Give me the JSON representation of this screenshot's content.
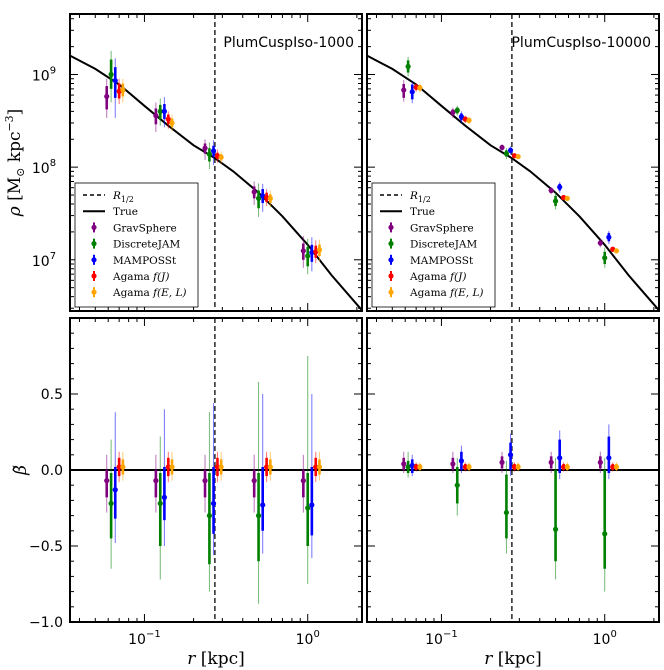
{
  "chart_data": {
    "type": "scatter",
    "radius_groups_kpc": [
      0.0625,
      0.125,
      0.25,
      0.5,
      1.0
    ],
    "r_half_kpc": 0.27,
    "xlim_kpc": [
      0.035,
      2.15
    ],
    "x_ticks": [
      {
        "value": 0.1,
        "base": "10",
        "exp": "−1"
      },
      {
        "value": 1.0,
        "base": "10",
        "exp": "0"
      }
    ],
    "xlabel": {
      "var": "r",
      "unit": "[kpc]"
    },
    "density_ylabel": {
      "var": "ρ",
      "unit_open": "[M",
      "unit_sub": "⊙",
      "unit_mid": " kpc",
      "unit_exp": "−3",
      "unit_close": "]"
    },
    "density_ylim": [
      2800000.0,
      4500000000.0
    ],
    "density_ticks": [
      {
        "value": 10000000.0,
        "base": "10",
        "exp": "7"
      },
      {
        "value": 100000000.0,
        "base": "10",
        "exp": "8"
      },
      {
        "value": 1000000000.0,
        "base": "10",
        "exp": "9"
      }
    ],
    "beta_ylabel": {
      "var": "β̃"
    },
    "beta_ylim": [
      -1.0,
      1.0
    ],
    "beta_ticks": [
      {
        "value": -1.0,
        "label": "−1.0"
      },
      {
        "value": -0.5,
        "label": "−0.5"
      },
      {
        "value": 0.0,
        "label": "0.0"
      },
      {
        "value": 0.5,
        "label": "0.5"
      }
    ],
    "true_density_profile": {
      "name": "True",
      "x": [
        0.035,
        0.05,
        0.07,
        0.1,
        0.14,
        0.2,
        0.27,
        0.35,
        0.5,
        0.7,
        1.0,
        1.4,
        2.15
      ],
      "y": [
        1600000000.0,
        1150000000.0,
        780000000.0,
        460000000.0,
        280000000.0,
        172000000.0,
        125000000.0,
        90000000.0,
        53000000.0,
        29500000.0,
        14500000.0,
        6800000.0,
        2850000.0
      ]
    },
    "true_beta": 0.0,
    "legend": [
      {
        "name": "R_1/2",
        "base": "R",
        "sub": "1/2",
        "style": "dashed-line"
      },
      {
        "name": "True",
        "label": "True",
        "style": "solid-line"
      },
      {
        "name": "GravSphere",
        "label": "GravSphere",
        "color": "#800080"
      },
      {
        "name": "DiscreteJAM",
        "label": "DiscreteJAM",
        "color": "#008000"
      },
      {
        "name": "MAMPOSSt",
        "label": "MAMPOSSt",
        "color": "#0000ff"
      },
      {
        "name": "Agama f(J)",
        "label": "Agama ",
        "math": "f(J)",
        "color": "#ff0000"
      },
      {
        "name": "Agama f(E,L)",
        "label": "Agama ",
        "math": "f(E, L)",
        "color": "#ffa500"
      }
    ],
    "methods": [
      {
        "name": "GravSphere",
        "color": "#800080",
        "xfac": 0.94
      },
      {
        "name": "DiscreteJAM",
        "color": "#008000",
        "xfac": 1.0
      },
      {
        "name": "MAMPOSSt",
        "color": "#0000ff",
        "xfac": 1.06
      },
      {
        "name": "Agama f(J)",
        "color": "#ff0000",
        "xfac": 1.12
      },
      {
        "name": "Agama f(E,L)",
        "color": "#ffa500",
        "xfac": 1.18
      }
    ],
    "panels": [
      {
        "title": "PlumCuspIso-1000",
        "density": {
          "GravSphere": {
            "y": [
              580000000.0,
              360000000.0,
              160000000.0,
              54000000.0,
              12500000.0
            ],
            "lo1": [
              420000000.0,
              290000000.0,
              140000000.0,
              46000000.0,
              10000000.0
            ],
            "hi1": [
              750000000.0,
              430000000.0,
              180000000.0,
              62000000.0,
              15000000.0
            ],
            "lo2": [
              340000000.0,
              240000000.0,
              120000000.0,
              39000000.0,
              8200000.0
            ],
            "hi2": [
              900000000.0,
              500000000.0,
              200000000.0,
              70000000.0,
              18000000.0
            ]
          },
          "DiscreteJAM": {
            "y": [
              1000000000.0,
              400000000.0,
              138000000.0,
              46000000.0,
              11000000.0
            ],
            "lo1": [
              700000000.0,
              330000000.0,
              115000000.0,
              36000000.0,
              8500000.0
            ],
            "hi1": [
              1450000000.0,
              470000000.0,
              160000000.0,
              56000000.0,
              13800000.0
            ],
            "lo2": [
              500000000.0,
              280000000.0,
              95000000.0,
              29000000.0,
              7000000.0
            ],
            "hi2": [
              1800000000.0,
              550000000.0,
              185000000.0,
              67000000.0,
              16800000.0
            ]
          },
          "MAMPOSSt": {
            "y": [
              860000000.0,
              400000000.0,
              150000000.0,
              49000000.0,
              12000000.0
            ],
            "lo1": [
              560000000.0,
              330000000.0,
              130000000.0,
              41000000.0,
              9500000.0
            ],
            "hi1": [
              1200000000.0,
              480000000.0,
              170000000.0,
              58000000.0,
              14500000.0
            ],
            "lo2": [
              340000000.0,
              270000000.0,
              105000000.0,
              33000000.0,
              7500000.0
            ],
            "hi2": [
              1500000000.0,
              570000000.0,
              195000000.0,
              66000000.0,
              17500000.0
            ]
          },
          "Agama f(J)": {
            "y": [
              660000000.0,
              330000000.0,
              132000000.0,
              47000000.0,
              12200000.0
            ],
            "lo1": [
              550000000.0,
              290000000.0,
              122000000.0,
              42000000.0,
              10500000.0
            ],
            "hi1": [
              800000000.0,
              370000000.0,
              143000000.0,
              53000000.0,
              14200000.0
            ],
            "lo2": [
              480000000.0,
              260000000.0,
              112000000.0,
              38000000.0,
              9200000.0
            ],
            "hi2": [
              900000000.0,
              400000000.0,
              155000000.0,
              58000000.0,
              16200000.0
            ]
          },
          "Agama f(E,L)": {
            "y": [
              680000000.0,
              300000000.0,
              128000000.0,
              46000000.0,
              12800000.0
            ],
            "lo1": [
              580000000.0,
              270000000.0,
              118000000.0,
              41000000.0,
              11000000.0
            ],
            "hi1": [
              800000000.0,
              335000000.0,
              138000000.0,
              51000000.0,
              14600000.0
            ],
            "lo2": [
              500000000.0,
              245000000.0,
              110000000.0,
              37000000.0,
              9600000.0
            ],
            "hi2": [
              900000000.0,
              370000000.0,
              148000000.0,
              56000000.0,
              16500000.0
            ]
          }
        },
        "beta": {
          "GravSphere": {
            "y": [
              -0.07,
              -0.07,
              -0.07,
              -0.07,
              -0.07
            ],
            "lo1": [
              -0.18,
              -0.18,
              -0.18,
              -0.18,
              -0.18
            ],
            "hi1": [
              0.0,
              0.0,
              0.0,
              0.0,
              0.0
            ],
            "lo2": [
              -0.28,
              -0.28,
              -0.28,
              -0.28,
              -0.28
            ],
            "hi2": [
              0.1,
              0.1,
              0.1,
              0.1,
              0.1
            ]
          },
          "DiscreteJAM": {
            "y": [
              -0.22,
              -0.22,
              -0.3,
              -0.3,
              -0.25
            ],
            "lo1": [
              -0.45,
              -0.5,
              -0.62,
              -0.6,
              -0.5
            ],
            "hi1": [
              -0.02,
              -0.02,
              -0.02,
              -0.02,
              -0.02
            ],
            "lo2": [
              -0.65,
              -0.72,
              -0.8,
              -0.88,
              -0.75
            ],
            "hi2": [
              0.2,
              0.22,
              0.38,
              0.58,
              0.75
            ]
          },
          "MAMPOSSt": {
            "y": [
              -0.13,
              -0.18,
              -0.22,
              -0.23,
              -0.23
            ],
            "lo1": [
              -0.32,
              -0.33,
              -0.42,
              -0.4,
              -0.43
            ],
            "hi1": [
              0.02,
              0.02,
              0.02,
              0.02,
              0.02
            ],
            "lo2": [
              -0.48,
              -0.5,
              -0.56,
              -0.55,
              -0.58
            ],
            "hi2": [
              0.38,
              0.4,
              0.44,
              0.5,
              0.5
            ]
          },
          "Agama f(J)": {
            "y": [
              0.02,
              0.02,
              0.02,
              0.02,
              0.02
            ],
            "lo1": [
              -0.04,
              -0.04,
              -0.04,
              -0.04,
              -0.04
            ],
            "hi1": [
              0.08,
              0.08,
              0.08,
              0.08,
              0.08
            ],
            "lo2": [
              -0.08,
              -0.08,
              -0.08,
              -0.08,
              -0.08
            ],
            "hi2": [
              0.12,
              0.12,
              0.12,
              0.12,
              0.12
            ]
          },
          "Agama f(E,L)": {
            "y": [
              0.02,
              0.02,
              0.02,
              0.02,
              0.02
            ],
            "lo1": [
              -0.03,
              -0.03,
              -0.03,
              -0.03,
              -0.03
            ],
            "hi1": [
              0.07,
              0.07,
              0.07,
              0.07,
              0.07
            ],
            "lo2": [
              -0.07,
              -0.07,
              -0.07,
              -0.07,
              -0.07
            ],
            "hi2": [
              0.12,
              0.12,
              0.12,
              0.12,
              0.12
            ]
          }
        }
      },
      {
        "title": "PlumCuspIso-10000",
        "density": {
          "GravSphere": {
            "y": [
              680000000.0,
              390000000.0,
              163000000.0,
              56000000.0,
              15200000.0
            ],
            "lo1": [
              560000000.0,
              360000000.0,
              155000000.0,
              53000000.0,
              14200000.0
            ],
            "hi1": [
              790000000.0,
              420000000.0,
              172000000.0,
              59000000.0,
              16200000.0
            ],
            "lo2": [
              510000000.0,
              340000000.0,
              150000000.0,
              51000000.0,
              13600000.0
            ],
            "hi2": [
              870000000.0,
              440000000.0,
              177000000.0,
              61000000.0,
              17000000.0
            ]
          },
          "DiscreteJAM": {
            "y": [
              1220000000.0,
              410000000.0,
              140000000.0,
              43000000.0,
              10500000.0
            ],
            "lo1": [
              1050000000.0,
              380000000.0,
              130000000.0,
              38000000.0,
              9000000.0
            ],
            "hi1": [
              1420000000.0,
              440000000.0,
              152000000.0,
              49000000.0,
              12200000.0
            ],
            "lo2": [
              950000000.0,
              360000000.0,
              122000000.0,
              35000000.0,
              8200000.0
            ],
            "hi2": [
              1550000000.0,
              460000000.0,
              160000000.0,
              53000000.0,
              13500000.0
            ]
          },
          "MAMPOSSt": {
            "y": [
              650000000.0,
              350000000.0,
              152000000.0,
              61000000.0,
              17500000.0
            ],
            "lo1": [
              540000000.0,
              320000000.0,
              142000000.0,
              56000000.0,
              15800000.0
            ],
            "hi1": [
              780000000.0,
              380000000.0,
              162000000.0,
              66000000.0,
              19500000.0
            ],
            "lo2": [
              490000000.0,
              300000000.0,
              136000000.0,
              53000000.0,
              14800000.0
            ],
            "hi2": [
              850000000.0,
              400000000.0,
              168000000.0,
              69000000.0,
              20500000.0
            ]
          },
          "Agama f(J)": {
            "y": [
              730000000.0,
              330000000.0,
              133000000.0,
              47000000.0,
              13000000.0
            ],
            "lo1": [
              680000000.0,
              310000000.0,
              128000000.0,
              45000000.0,
              12500000.0
            ],
            "hi1": [
              780000000.0,
              350000000.0,
              138000000.0,
              49000000.0,
              13500000.0
            ],
            "lo2": [
              650000000.0,
              300000000.0,
              125000000.0,
              44000000.0,
              12200000.0
            ],
            "hi2": [
              810000000.0,
              360000000.0,
              141000000.0,
              50000000.0,
              13800000.0
            ]
          },
          "Agama f(E,L)": {
            "y": [
              720000000.0,
              320000000.0,
              130000000.0,
              46000000.0,
              12500000.0
            ],
            "lo1": [
              670000000.0,
              300000000.0,
              125000000.0,
              44000000.0,
              12000000.0
            ],
            "hi1": [
              770000000.0,
              340000000.0,
              135000000.0,
              48000000.0,
              13000000.0
            ],
            "lo2": [
              640000000.0,
              290000000.0,
              122000000.0,
              43000000.0,
              11700000.0
            ],
            "hi2": [
              800000000.0,
              350000000.0,
              138000000.0,
              49000000.0,
              13300000.0
            ]
          }
        },
        "beta": {
          "GravSphere": {
            "y": [
              0.04,
              0.04,
              0.05,
              0.05,
              0.05
            ],
            "lo1": [
              0.0,
              0.0,
              0.01,
              0.01,
              0.01
            ],
            "hi1": [
              0.08,
              0.08,
              0.09,
              0.09,
              0.09
            ],
            "lo2": [
              -0.02,
              -0.02,
              -0.02,
              -0.02,
              -0.02
            ],
            "hi2": [
              0.12,
              0.12,
              0.12,
              0.12,
              0.12
            ]
          },
          "DiscreteJAM": {
            "y": [
              0.02,
              -0.1,
              -0.28,
              -0.39,
              -0.42
            ],
            "lo1": [
              -0.02,
              -0.22,
              -0.45,
              -0.6,
              -0.65
            ],
            "hi1": [
              0.06,
              0.02,
              -0.03,
              0.0,
              0.0
            ],
            "lo2": [
              -0.05,
              -0.3,
              -0.55,
              -0.72,
              -0.8
            ],
            "hi2": [
              0.12,
              0.08,
              0.06,
              0.08,
              0.08
            ]
          },
          "MAMPOSSt": {
            "y": [
              0.03,
              0.06,
              0.1,
              0.08,
              0.08
            ],
            "lo1": [
              -0.02,
              0.0,
              0.0,
              -0.02,
              -0.02
            ],
            "hi1": [
              0.07,
              0.12,
              0.18,
              0.2,
              0.22
            ],
            "lo2": [
              -0.04,
              -0.02,
              -0.04,
              -0.06,
              -0.06
            ],
            "hi2": [
              0.1,
              0.16,
              0.24,
              0.26,
              0.3
            ]
          },
          "Agama f(J)": {
            "y": [
              0.02,
              0.02,
              0.02,
              0.02,
              0.02
            ],
            "lo1": [
              0.0,
              0.0,
              0.0,
              0.0,
              0.0
            ],
            "hi1": [
              0.04,
              0.04,
              0.04,
              0.04,
              0.04
            ],
            "lo2": [
              -0.01,
              -0.01,
              -0.01,
              -0.01,
              -0.01
            ],
            "hi2": [
              0.05,
              0.05,
              0.05,
              0.05,
              0.05
            ]
          },
          "Agama f(E,L)": {
            "y": [
              0.02,
              0.02,
              0.02,
              0.02,
              0.02
            ],
            "lo1": [
              0.0,
              0.0,
              0.0,
              0.0,
              0.0
            ],
            "hi1": [
              0.04,
              0.04,
              0.04,
              0.04,
              0.04
            ],
            "lo2": [
              -0.01,
              -0.01,
              -0.01,
              -0.01,
              -0.01
            ],
            "hi2": [
              0.05,
              0.05,
              0.05,
              0.05,
              0.05
            ]
          }
        }
      }
    ]
  }
}
